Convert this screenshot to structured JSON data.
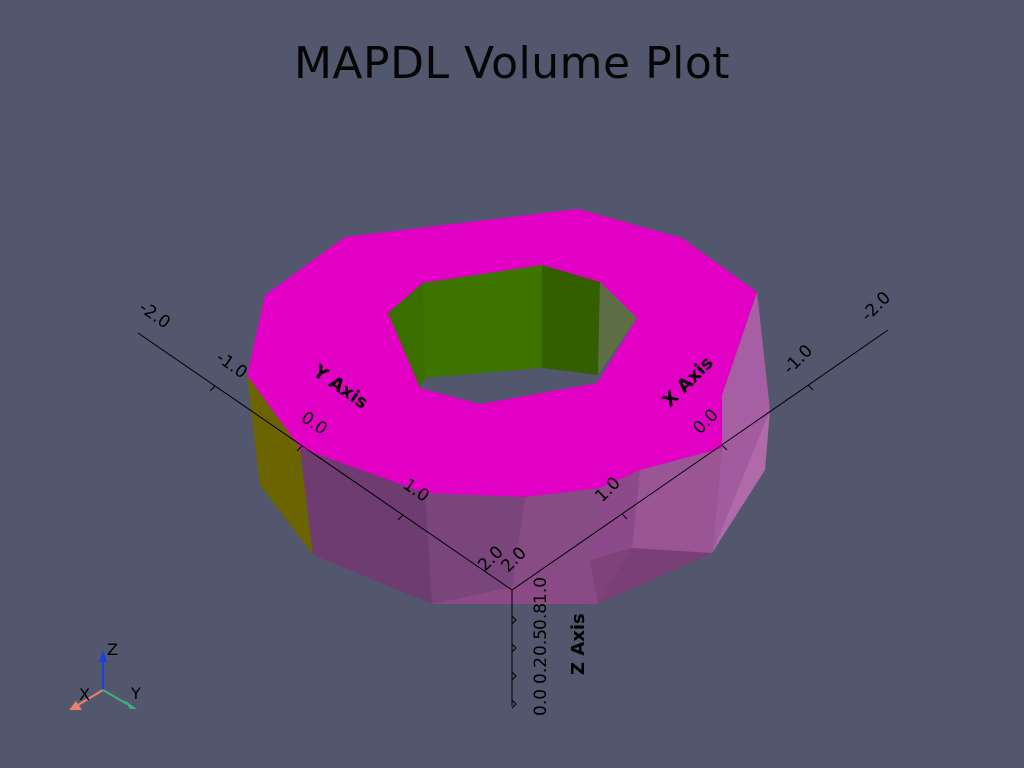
{
  "title": "MAPDL Volume Plot",
  "axes": {
    "x": {
      "title": "X Axis",
      "ticks": [
        "-2.0",
        "-1.0",
        "0.0",
        "1.0",
        "2.0"
      ]
    },
    "y": {
      "title": "Y Axis",
      "ticks": [
        "-2.0",
        "-1.0",
        "0.0",
        "1.0",
        "2.0"
      ]
    },
    "z": {
      "title": "Z Axis",
      "ticks": [
        "0.0",
        "0.2",
        "0.5",
        "0.8",
        "1.0"
      ]
    }
  },
  "orientation_widget": {
    "x_label": "X",
    "y_label": "Y",
    "z_label": "Z"
  },
  "colors": {
    "background": "#52576e",
    "top_face": "#e100c3",
    "outer_wall": "#8e4a87",
    "inner_wall": "#3d7400",
    "yellow_face": "#6c6400",
    "axis_x": "#e8826a",
    "axis_y": "#3fb27a",
    "axis_z": "#1840e0"
  }
}
